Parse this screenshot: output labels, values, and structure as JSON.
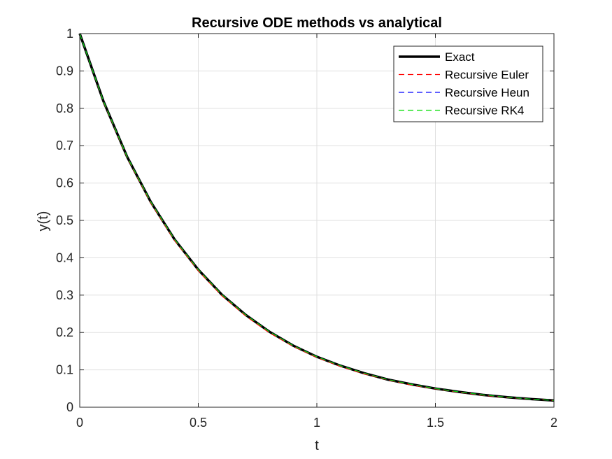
{
  "chart_data": {
    "type": "line",
    "title": "Recursive ODE methods vs analytical",
    "xlabel": "t",
    "ylabel": "y(t)",
    "xlim": [
      0,
      2
    ],
    "ylim": [
      0,
      1
    ],
    "xticks": [
      0,
      0.5,
      1,
      1.5,
      2
    ],
    "xtick_labels": [
      "0",
      "0.5",
      "1",
      "1.5",
      "2"
    ],
    "yticks": [
      0,
      0.1,
      0.2,
      0.3,
      0.4,
      0.5,
      0.6,
      0.7,
      0.8,
      0.9,
      1
    ],
    "ytick_labels": [
      "0",
      "0.1",
      "0.2",
      "0.3",
      "0.4",
      "0.5",
      "0.6",
      "0.7",
      "0.8",
      "0.9",
      "1"
    ],
    "grid": true,
    "legend_position": "top-right",
    "x": [
      0,
      0.1,
      0.2,
      0.3,
      0.4,
      0.5,
      0.6,
      0.7,
      0.8,
      0.9,
      1.0,
      1.1,
      1.2,
      1.3,
      1.4,
      1.5,
      1.6,
      1.7,
      1.8,
      1.9,
      2.0
    ],
    "series": [
      {
        "name": "Exact",
        "color": "#000000",
        "style": "solid",
        "values": [
          1.0,
          0.819,
          0.67,
          0.549,
          0.449,
          0.368,
          0.301,
          0.247,
          0.202,
          0.165,
          0.135,
          0.111,
          0.091,
          0.074,
          0.061,
          0.05,
          0.041,
          0.033,
          0.027,
          0.022,
          0.018
        ]
      },
      {
        "name": "Recursive Euler",
        "color": "#ff0000",
        "style": "dashed",
        "values": [
          1.0,
          0.817,
          0.668,
          0.546,
          0.446,
          0.365,
          0.298,
          0.244,
          0.199,
          0.163,
          0.133,
          0.109,
          0.089,
          0.073,
          0.059,
          0.049,
          0.04,
          0.032,
          0.026,
          0.022,
          0.018
        ]
      },
      {
        "name": "Recursive Heun",
        "color": "#0000ff",
        "style": "dashed",
        "values": [
          1.0,
          0.819,
          0.67,
          0.549,
          0.449,
          0.368,
          0.301,
          0.247,
          0.202,
          0.165,
          0.135,
          0.111,
          0.091,
          0.074,
          0.061,
          0.05,
          0.041,
          0.033,
          0.027,
          0.022,
          0.018
        ]
      },
      {
        "name": "Recursive RK4",
        "color": "#00dd00",
        "style": "dashed",
        "values": [
          1.0,
          0.819,
          0.67,
          0.549,
          0.449,
          0.368,
          0.301,
          0.247,
          0.202,
          0.165,
          0.135,
          0.111,
          0.091,
          0.074,
          0.061,
          0.05,
          0.041,
          0.033,
          0.027,
          0.022,
          0.018
        ]
      }
    ]
  }
}
